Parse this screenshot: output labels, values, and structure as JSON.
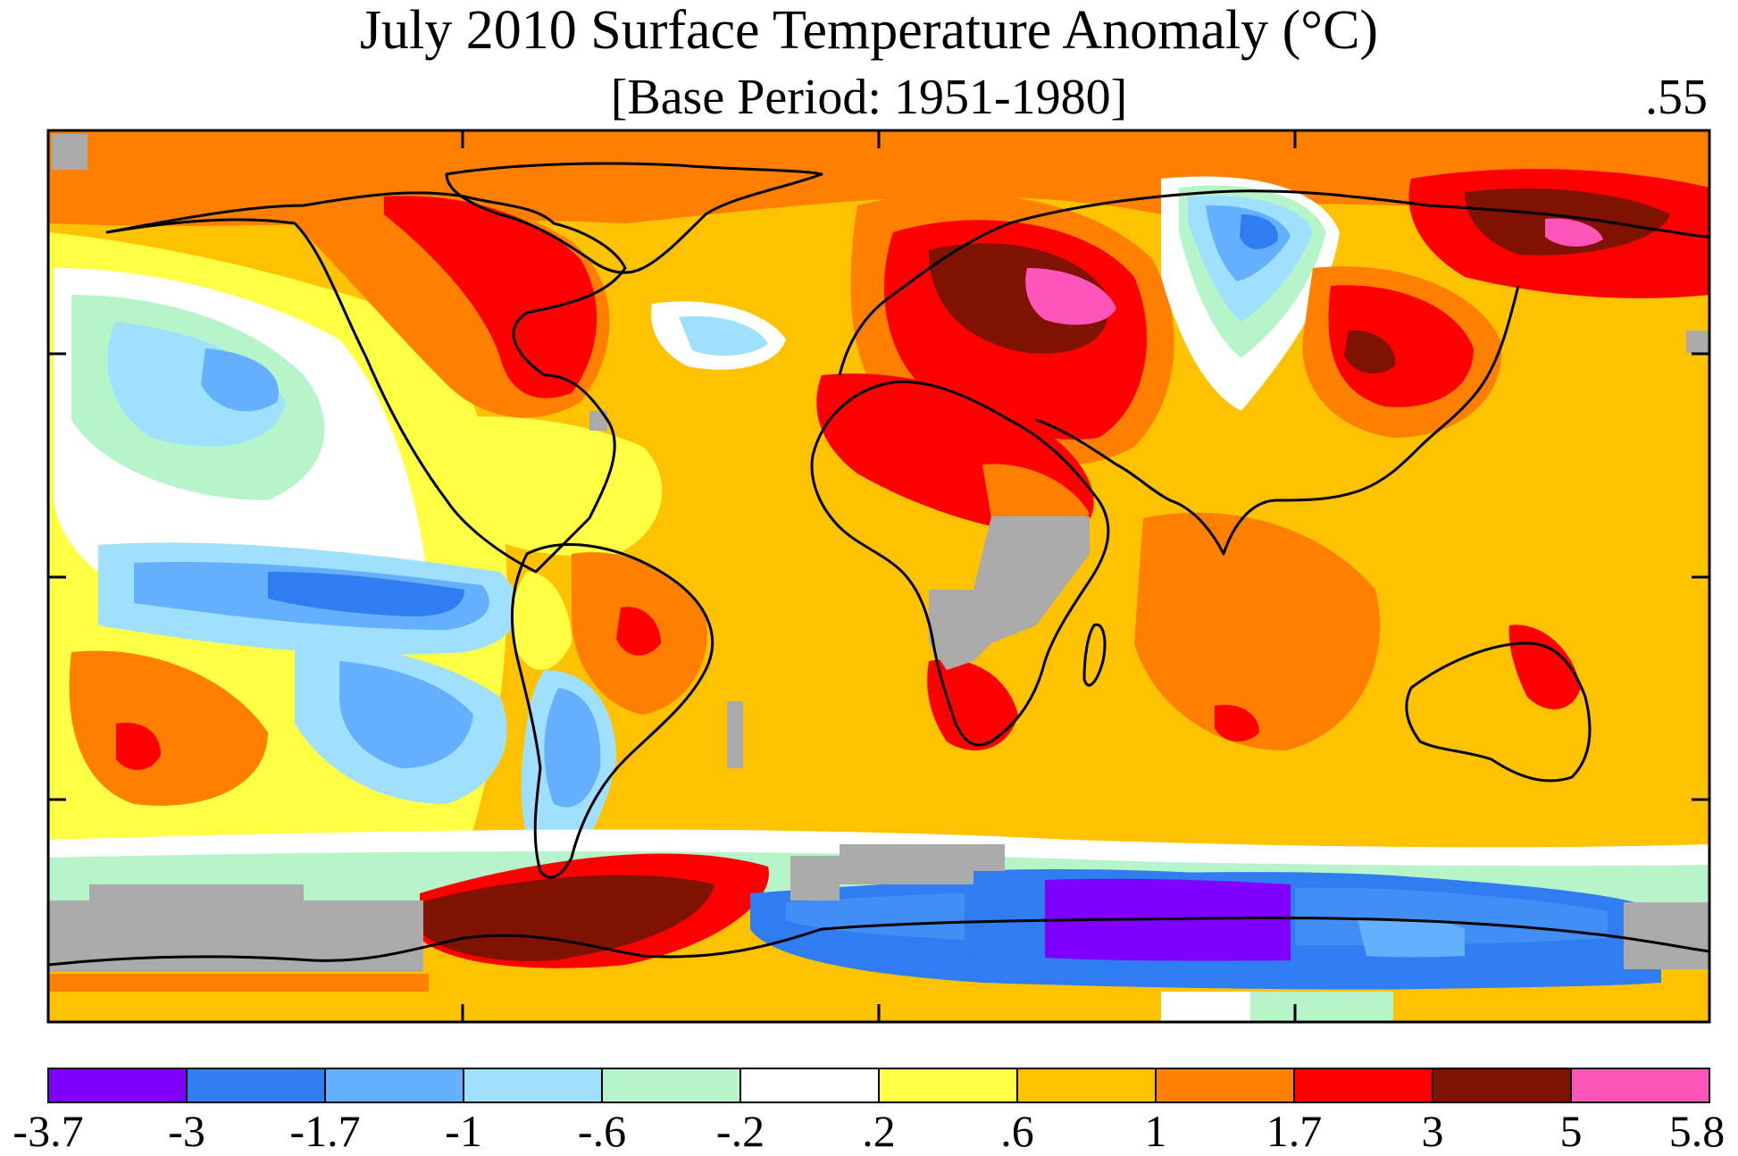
{
  "map": {
    "title": "July 2010 Surface Temperature Anomaly (°C)",
    "subtitle": "[Base Period: 1951-1980]",
    "global_mean": ".55"
  },
  "legend": {
    "labels": [
      "-3.7",
      "-3",
      "-1.7",
      "-1",
      "-.6",
      "-.2",
      ".2",
      ".6",
      "1",
      "1.7",
      "3",
      "5",
      "5.8"
    ],
    "colors": [
      "#8000ff",
      "#2f7df0",
      "#64b0ff",
      "#9fe0ff",
      "#b6f5c9",
      "#ffffff",
      "#ffff44",
      "#ffc200",
      "#ff7f00",
      "#ff0000",
      "#7f1300",
      "#ff55bb"
    ],
    "missing_color": "#aaaaaa"
  }
}
